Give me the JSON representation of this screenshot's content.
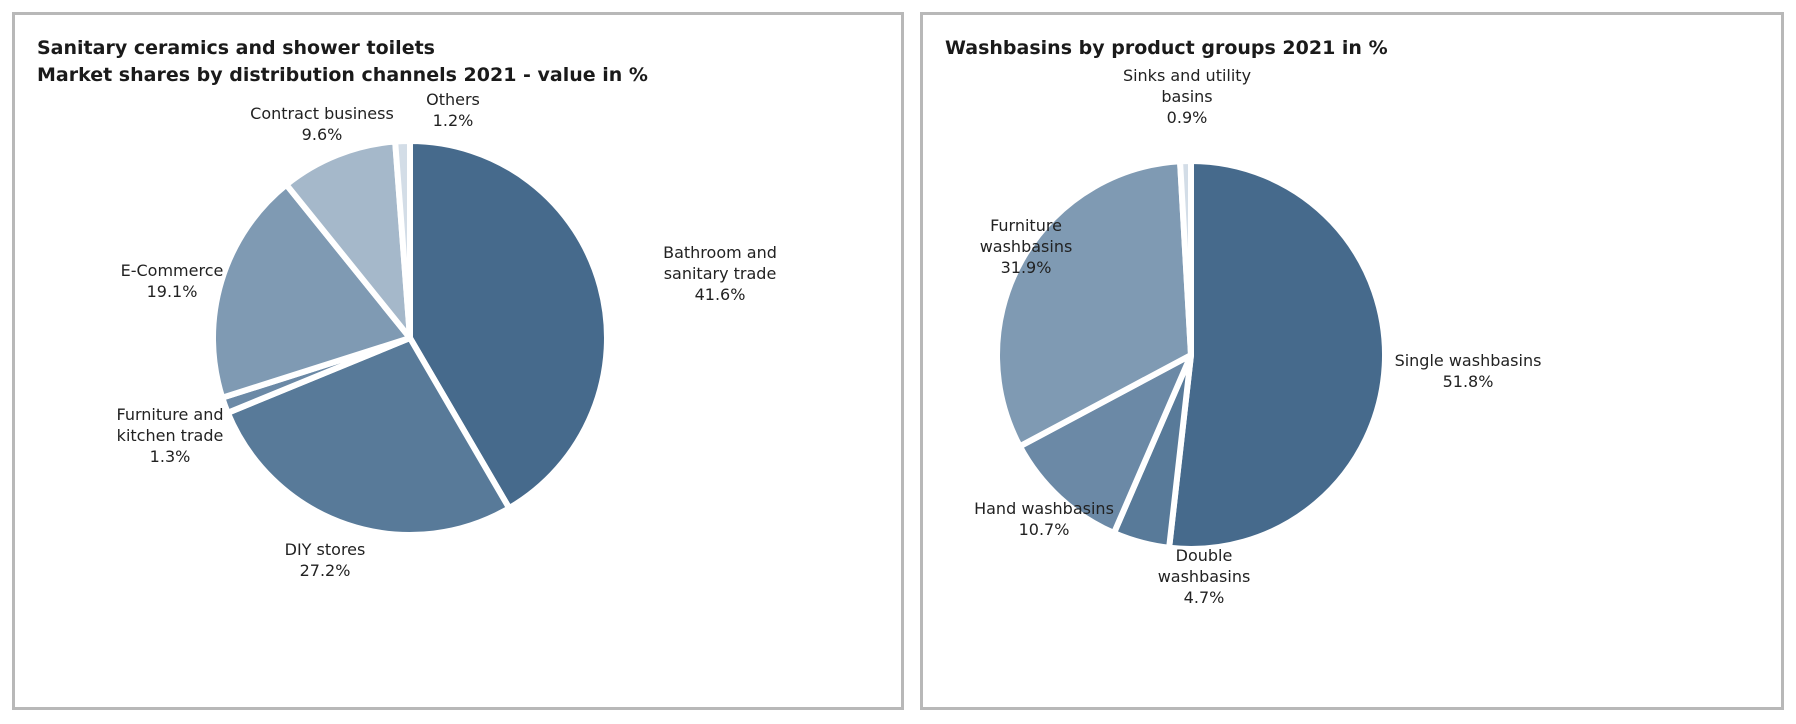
{
  "chart_data": [
    {
      "type": "pie",
      "title": "Sanitary ceramics and shower toilets",
      "subtitle": "Market shares by distribution channels 2021 - value in %",
      "unit": "%",
      "slices": [
        {
          "label": [
            "Bathroom and",
            "sanitary trade"
          ],
          "value": 41.6,
          "value_label": "41.6%",
          "color": "#466a8c"
        },
        {
          "label": [
            "DIY stores"
          ],
          "value": 27.2,
          "value_label": "27.2%",
          "color": "#587a99"
        },
        {
          "label": [
            "Furniture and",
            "kitchen trade"
          ],
          "value": 1.3,
          "value_label": "1.3%",
          "color": "#6b89a6"
        },
        {
          "label": [
            "E-Commerce"
          ],
          "value": 19.1,
          "value_label": "19.1%",
          "color": "#7f9ab3"
        },
        {
          "label": [
            "Contract business"
          ],
          "value": 9.6,
          "value_label": "9.6%",
          "color": "#a5b8ca"
        },
        {
          "label": [
            "Others"
          ],
          "value": 1.2,
          "value_label": "1.2%",
          "color": "#d3dde7"
        }
      ]
    },
    {
      "type": "pie",
      "title": "Washbasins by product groups 2021 in %",
      "subtitle": "",
      "unit": "%",
      "slices": [
        {
          "label": [
            "Single washbasins"
          ],
          "value": 51.8,
          "value_label": "51.8%",
          "color": "#466a8c"
        },
        {
          "label": [
            "Double",
            "washbasins"
          ],
          "value": 4.7,
          "value_label": "4.7%",
          "color": "#587a99"
        },
        {
          "label": [
            "Hand washbasins"
          ],
          "value": 10.7,
          "value_label": "10.7%",
          "color": "#6b89a6"
        },
        {
          "label": [
            "Furniture",
            "washbasins"
          ],
          "value": 31.9,
          "value_label": "31.9%",
          "color": "#7f9ab3"
        },
        {
          "label": [
            "Sinks and utility",
            "basins"
          ],
          "value": 0.9,
          "value_label": "0.9%",
          "color": "#d3dde7"
        }
      ]
    }
  ]
}
